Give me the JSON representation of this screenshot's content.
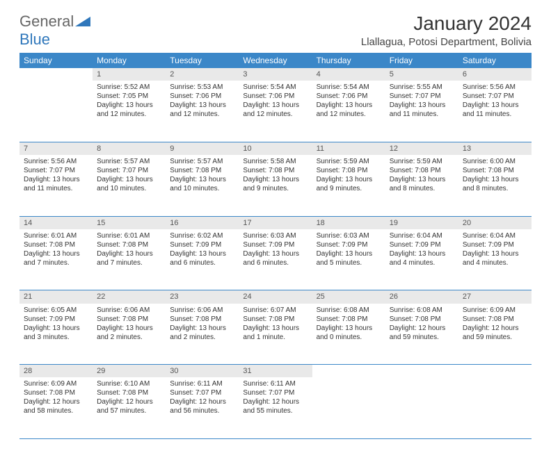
{
  "brand": {
    "part1": "General",
    "part2": "Blue"
  },
  "title": "January 2024",
  "location": "Llallagua, Potosi Department, Bolivia",
  "colors": {
    "header_bg": "#3b87c8",
    "header_fg": "#ffffff",
    "daynum_bg": "#e9e9e9",
    "sep": "#3b87c8",
    "brand_blue": "#2f77bb"
  },
  "weekdays": [
    "Sunday",
    "Monday",
    "Tuesday",
    "Wednesday",
    "Thursday",
    "Friday",
    "Saturday"
  ],
  "weeks": [
    [
      null,
      {
        "n": 1,
        "sr": "5:52 AM",
        "ss": "7:05 PM",
        "dl": "13 hours and 12 minutes."
      },
      {
        "n": 2,
        "sr": "5:53 AM",
        "ss": "7:06 PM",
        "dl": "13 hours and 12 minutes."
      },
      {
        "n": 3,
        "sr": "5:54 AM",
        "ss": "7:06 PM",
        "dl": "13 hours and 12 minutes."
      },
      {
        "n": 4,
        "sr": "5:54 AM",
        "ss": "7:06 PM",
        "dl": "13 hours and 12 minutes."
      },
      {
        "n": 5,
        "sr": "5:55 AM",
        "ss": "7:07 PM",
        "dl": "13 hours and 11 minutes."
      },
      {
        "n": 6,
        "sr": "5:56 AM",
        "ss": "7:07 PM",
        "dl": "13 hours and 11 minutes."
      }
    ],
    [
      {
        "n": 7,
        "sr": "5:56 AM",
        "ss": "7:07 PM",
        "dl": "13 hours and 11 minutes."
      },
      {
        "n": 8,
        "sr": "5:57 AM",
        "ss": "7:07 PM",
        "dl": "13 hours and 10 minutes."
      },
      {
        "n": 9,
        "sr": "5:57 AM",
        "ss": "7:08 PM",
        "dl": "13 hours and 10 minutes."
      },
      {
        "n": 10,
        "sr": "5:58 AM",
        "ss": "7:08 PM",
        "dl": "13 hours and 9 minutes."
      },
      {
        "n": 11,
        "sr": "5:59 AM",
        "ss": "7:08 PM",
        "dl": "13 hours and 9 minutes."
      },
      {
        "n": 12,
        "sr": "5:59 AM",
        "ss": "7:08 PM",
        "dl": "13 hours and 8 minutes."
      },
      {
        "n": 13,
        "sr": "6:00 AM",
        "ss": "7:08 PM",
        "dl": "13 hours and 8 minutes."
      }
    ],
    [
      {
        "n": 14,
        "sr": "6:01 AM",
        "ss": "7:08 PM",
        "dl": "13 hours and 7 minutes."
      },
      {
        "n": 15,
        "sr": "6:01 AM",
        "ss": "7:08 PM",
        "dl": "13 hours and 7 minutes."
      },
      {
        "n": 16,
        "sr": "6:02 AM",
        "ss": "7:09 PM",
        "dl": "13 hours and 6 minutes."
      },
      {
        "n": 17,
        "sr": "6:03 AM",
        "ss": "7:09 PM",
        "dl": "13 hours and 6 minutes."
      },
      {
        "n": 18,
        "sr": "6:03 AM",
        "ss": "7:09 PM",
        "dl": "13 hours and 5 minutes."
      },
      {
        "n": 19,
        "sr": "6:04 AM",
        "ss": "7:09 PM",
        "dl": "13 hours and 4 minutes."
      },
      {
        "n": 20,
        "sr": "6:04 AM",
        "ss": "7:09 PM",
        "dl": "13 hours and 4 minutes."
      }
    ],
    [
      {
        "n": 21,
        "sr": "6:05 AM",
        "ss": "7:09 PM",
        "dl": "13 hours and 3 minutes."
      },
      {
        "n": 22,
        "sr": "6:06 AM",
        "ss": "7:08 PM",
        "dl": "13 hours and 2 minutes."
      },
      {
        "n": 23,
        "sr": "6:06 AM",
        "ss": "7:08 PM",
        "dl": "13 hours and 2 minutes."
      },
      {
        "n": 24,
        "sr": "6:07 AM",
        "ss": "7:08 PM",
        "dl": "13 hours and 1 minute."
      },
      {
        "n": 25,
        "sr": "6:08 AM",
        "ss": "7:08 PM",
        "dl": "13 hours and 0 minutes."
      },
      {
        "n": 26,
        "sr": "6:08 AM",
        "ss": "7:08 PM",
        "dl": "12 hours and 59 minutes."
      },
      {
        "n": 27,
        "sr": "6:09 AM",
        "ss": "7:08 PM",
        "dl": "12 hours and 59 minutes."
      }
    ],
    [
      {
        "n": 28,
        "sr": "6:09 AM",
        "ss": "7:08 PM",
        "dl": "12 hours and 58 minutes."
      },
      {
        "n": 29,
        "sr": "6:10 AM",
        "ss": "7:08 PM",
        "dl": "12 hours and 57 minutes."
      },
      {
        "n": 30,
        "sr": "6:11 AM",
        "ss": "7:07 PM",
        "dl": "12 hours and 56 minutes."
      },
      {
        "n": 31,
        "sr": "6:11 AM",
        "ss": "7:07 PM",
        "dl": "12 hours and 55 minutes."
      },
      null,
      null,
      null
    ]
  ],
  "labels": {
    "sunrise": "Sunrise:",
    "sunset": "Sunset:",
    "daylight": "Daylight:"
  }
}
